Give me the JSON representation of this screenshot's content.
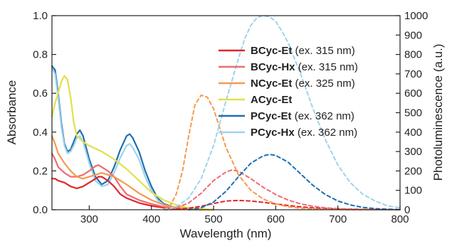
{
  "chart_data": {
    "type": "line",
    "title": "",
    "xlabel": "Wavelength (nm)",
    "ylabel": "Absorbance",
    "y2label": "Photoluminescence (a.u.)",
    "xlim": [
      240,
      800
    ],
    "ylim": [
      0,
      1.0
    ],
    "y2lim": [
      0,
      1000
    ],
    "xticks": [
      300,
      400,
      500,
      600,
      700,
      800
    ],
    "yticks": [
      0.0,
      0.2,
      0.4,
      0.6,
      0.8,
      1.0
    ],
    "y2ticks": [
      0,
      100,
      200,
      300,
      400,
      500,
      600,
      700,
      800,
      900,
      1000
    ],
    "grid": false,
    "legend_position": "top-right",
    "legend": [
      {
        "name": "BCyc-Et",
        "note": "(ex. 315 nm)",
        "color": "#e0262b"
      },
      {
        "name": "BCyc-Hx",
        "note": "(ex. 315 nm)",
        "color": "#ef6b73"
      },
      {
        "name": "NCyc-Et",
        "note": "(ex. 325 nm)",
        "color": "#f59a4f"
      },
      {
        "name": "ACyc-Et",
        "note": "",
        "color": "#e3e04a"
      },
      {
        "name": "PCyc-Et",
        "note": "(ex. 362 nm)",
        "color": "#1f6fb0"
      },
      {
        "name": "PCyc-Hx",
        "note": "(ex. 362 nm)",
        "color": "#9fd3ec"
      }
    ],
    "series": [
      {
        "name": "BCyc-Et",
        "kind": "absorbance",
        "color": "#e0262b",
        "x": [
          240,
          245,
          250,
          260,
          270,
          280,
          290,
          300,
          310,
          315,
          320,
          330,
          340,
          350,
          360,
          380,
          400,
          420,
          440,
          460,
          480,
          500
        ],
        "y": [
          0.16,
          0.16,
          0.15,
          0.14,
          0.12,
          0.11,
          0.12,
          0.14,
          0.16,
          0.17,
          0.17,
          0.15,
          0.12,
          0.08,
          0.06,
          0.035,
          0.02,
          0.01,
          0.005,
          0.002,
          0.001,
          0
        ]
      },
      {
        "name": "BCyc-Hx",
        "kind": "absorbance",
        "color": "#ef6b73",
        "x": [
          240,
          245,
          250,
          260,
          270,
          280,
          290,
          300,
          310,
          315,
          320,
          330,
          340,
          350,
          360,
          380,
          400,
          420,
          440,
          460,
          480,
          500
        ],
        "y": [
          0.29,
          0.26,
          0.22,
          0.19,
          0.17,
          0.17,
          0.18,
          0.2,
          0.225,
          0.23,
          0.22,
          0.2,
          0.17,
          0.12,
          0.08,
          0.05,
          0.03,
          0.015,
          0.007,
          0.003,
          0.001,
          0
        ]
      },
      {
        "name": "NCyc-Et",
        "kind": "absorbance",
        "color": "#f59a4f",
        "x": [
          240,
          245,
          250,
          260,
          270,
          280,
          290,
          300,
          310,
          320,
          330,
          340,
          350,
          360,
          380,
          400,
          420,
          440,
          460,
          480,
          500
        ],
        "y": [
          0.38,
          0.34,
          0.29,
          0.24,
          0.2,
          0.17,
          0.16,
          0.17,
          0.18,
          0.19,
          0.18,
          0.17,
          0.15,
          0.13,
          0.085,
          0.05,
          0.025,
          0.012,
          0.005,
          0.002,
          0
        ]
      },
      {
        "name": "ACyc-Et",
        "kind": "absorbance",
        "color": "#e3e04a",
        "x": [
          240,
          245,
          250,
          255,
          260,
          265,
          270,
          275,
          280,
          290,
          300,
          320,
          340,
          360,
          380,
          400,
          420,
          440,
          460,
          480,
          500
        ],
        "y": [
          0.48,
          0.55,
          0.6,
          0.66,
          0.69,
          0.67,
          0.58,
          0.45,
          0.38,
          0.35,
          0.33,
          0.3,
          0.26,
          0.21,
          0.15,
          0.09,
          0.05,
          0.025,
          0.01,
          0.005,
          0
        ]
      },
      {
        "name": "PCyc-Et",
        "kind": "absorbance",
        "color": "#1f6fb0",
        "x": [
          240,
          245,
          250,
          255,
          260,
          265,
          270,
          275,
          280,
          285,
          290,
          300,
          310,
          320,
          330,
          340,
          350,
          360,
          365,
          370,
          380,
          390,
          400,
          410,
          420,
          440,
          460,
          480,
          500
        ],
        "y": [
          0.74,
          0.72,
          0.6,
          0.45,
          0.34,
          0.3,
          0.31,
          0.35,
          0.39,
          0.41,
          0.38,
          0.26,
          0.17,
          0.13,
          0.15,
          0.22,
          0.31,
          0.38,
          0.39,
          0.37,
          0.3,
          0.2,
          0.12,
          0.06,
          0.03,
          0.01,
          0.005,
          0.002,
          0
        ]
      },
      {
        "name": "PCyc-Hx",
        "kind": "absorbance",
        "color": "#9fd3ec",
        "x": [
          240,
          245,
          250,
          255,
          260,
          265,
          270,
          275,
          280,
          285,
          290,
          300,
          310,
          320,
          330,
          340,
          350,
          360,
          365,
          370,
          380,
          390,
          400,
          410,
          420,
          440,
          460,
          480,
          500
        ],
        "y": [
          0.73,
          0.7,
          0.58,
          0.43,
          0.33,
          0.29,
          0.3,
          0.33,
          0.37,
          0.38,
          0.35,
          0.24,
          0.15,
          0.12,
          0.13,
          0.19,
          0.27,
          0.33,
          0.34,
          0.32,
          0.26,
          0.17,
          0.1,
          0.05,
          0.025,
          0.01,
          0.004,
          0.001,
          0
        ]
      },
      {
        "name": "BCyc-Et",
        "kind": "photoluminescence",
        "color": "#e0262b",
        "x": [
          420,
          440,
          460,
          480,
          500,
          520,
          540,
          560,
          580,
          600,
          620,
          640,
          660,
          680,
          700,
          720,
          740,
          760,
          780,
          800
        ],
        "y": [
          0,
          3,
          8,
          18,
          32,
          45,
          48,
          45,
          38,
          30,
          22,
          15,
          10,
          7,
          4,
          3,
          2,
          1,
          1,
          0
        ]
      },
      {
        "name": "BCyc-Hx",
        "kind": "photoluminescence",
        "color": "#ef6b73",
        "x": [
          420,
          440,
          460,
          480,
          500,
          520,
          530,
          540,
          560,
          580,
          600,
          620,
          640,
          660,
          680,
          700,
          720,
          740,
          760,
          780,
          800
        ],
        "y": [
          0,
          10,
          35,
          85,
          150,
          195,
          205,
          198,
          160,
          115,
          78,
          50,
          30,
          18,
          10,
          6,
          3,
          2,
          1,
          0,
          0
        ]
      },
      {
        "name": "NCyc-Et",
        "kind": "photoluminescence",
        "color": "#f59a4f",
        "x": [
          420,
          430,
          440,
          450,
          460,
          470,
          480,
          490,
          500,
          510,
          520,
          540,
          560,
          580,
          600,
          620,
          640,
          660,
          680,
          700,
          720,
          740,
          760,
          780,
          800
        ],
        "y": [
          0,
          20,
          80,
          200,
          380,
          540,
          590,
          580,
          520,
          420,
          320,
          180,
          100,
          55,
          30,
          15,
          8,
          4,
          2,
          1,
          0,
          0,
          0,
          0,
          0
        ]
      },
      {
        "name": "PCyc-Et",
        "kind": "photoluminescence",
        "color": "#1f6fb0",
        "x": [
          460,
          480,
          500,
          520,
          540,
          560,
          580,
          590,
          600,
          620,
          640,
          660,
          680,
          700,
          720,
          740,
          760,
          780,
          800
        ],
        "y": [
          0,
          10,
          40,
          95,
          170,
          240,
          278,
          285,
          280,
          245,
          185,
          125,
          78,
          45,
          25,
          12,
          6,
          3,
          1
        ]
      },
      {
        "name": "PCyc-Hx",
        "kind": "photoluminescence",
        "color": "#9fd3ec",
        "x": [
          420,
          440,
          460,
          480,
          500,
          520,
          540,
          550,
          560,
          570,
          580,
          590,
          600,
          610,
          620,
          640,
          660,
          680,
          700,
          720,
          740,
          760,
          780,
          800
        ],
        "y": [
          0,
          15,
          60,
          160,
          330,
          560,
          780,
          880,
          950,
          990,
          1000,
          995,
          970,
          920,
          860,
          700,
          520,
          360,
          230,
          140,
          80,
          45,
          20,
          10
        ]
      }
    ]
  }
}
